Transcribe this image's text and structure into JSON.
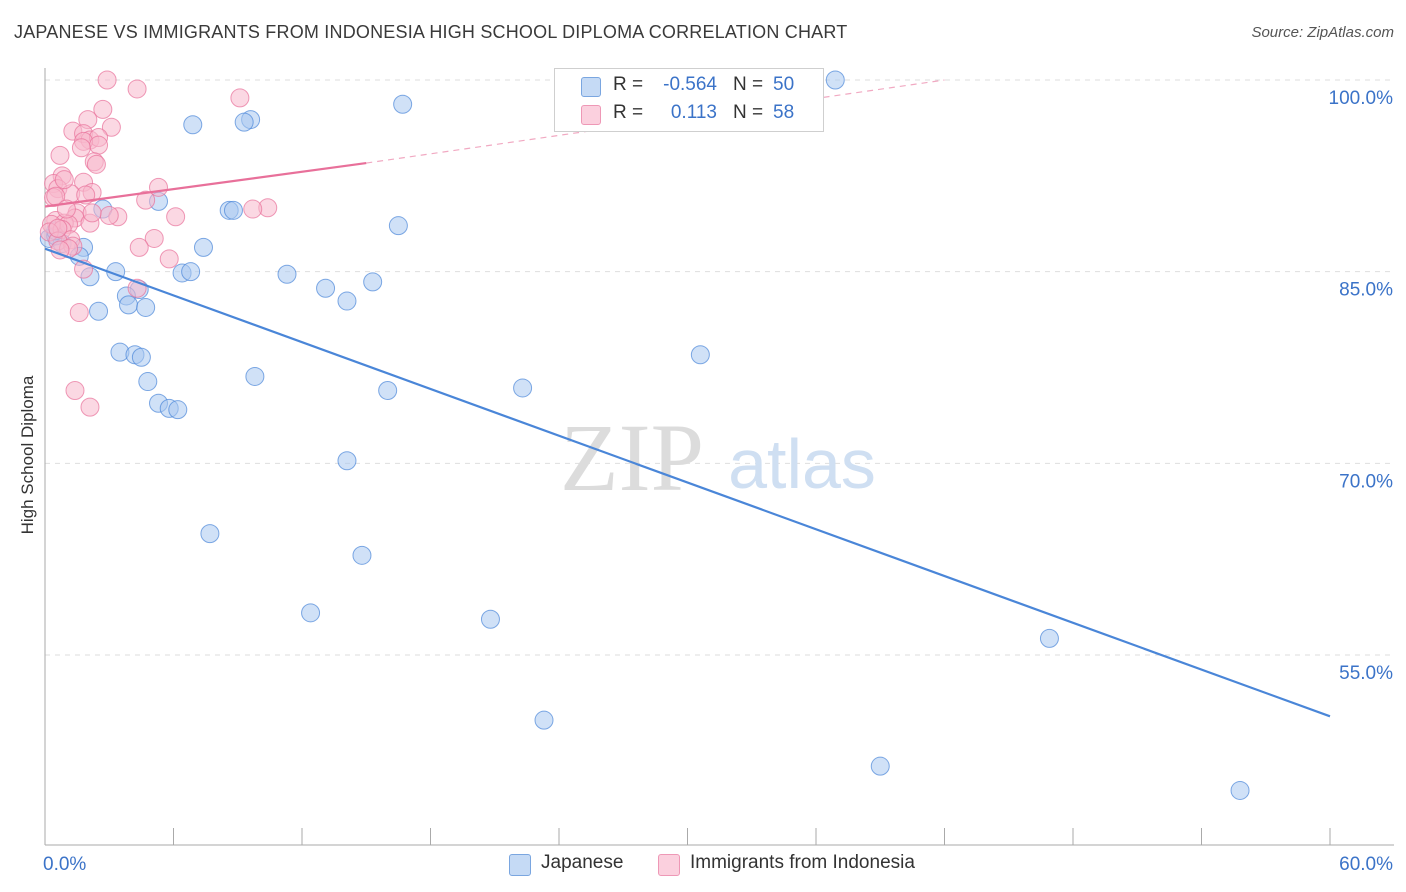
{
  "header": {
    "title": "JAPANESE VS IMMIGRANTS FROM INDONESIA HIGH SCHOOL DIPLOMA CORRELATION CHART",
    "source": "Source: ZipAtlas.com"
  },
  "watermark": {
    "zip": "ZIP",
    "atlas": "atlas"
  },
  "legend": {
    "rows": [
      {
        "r_label": "R =",
        "r_value": "-0.564",
        "n_label": "N =",
        "n_value": "50",
        "color": "#a9c8f0"
      },
      {
        "r_label": "R =",
        "r_value": "0.113",
        "n_label": "N =",
        "n_value": "58",
        "color": "#f7b8cc"
      }
    ]
  },
  "chart_data": {
    "type": "scatter",
    "title": "JAPANESE VS IMMIGRANTS FROM INDONESIA HIGH SCHOOL DIPLOMA CORRELATION CHART",
    "xlabel": "",
    "ylabel": "High School Diploma",
    "xlim": [
      0,
      60
    ],
    "ylim": [
      40,
      102
    ],
    "x_tick_labels": [
      "0.0%",
      "60.0%"
    ],
    "y_ticks": [
      55,
      70,
      85,
      100
    ],
    "y_tick_labels": [
      "55.0%",
      "70.0%",
      "85.0%",
      "100.0%"
    ],
    "grid": true,
    "legend_position": "bottom",
    "series": [
      {
        "name": "Japanese",
        "color": "#4a86d8",
        "fill": "#a9c8f0",
        "trend": {
          "x": [
            0,
            60
          ],
          "y": [
            86.8,
            50.2
          ]
        },
        "points": [
          [
            36.9,
            100
          ],
          [
            16.7,
            98.1
          ],
          [
            9.6,
            96.9
          ],
          [
            6.9,
            96.5
          ],
          [
            9.3,
            96.7
          ],
          [
            2.7,
            89.9
          ],
          [
            5.3,
            90.5
          ],
          [
            8.6,
            89.8
          ],
          [
            8.8,
            89.8
          ],
          [
            16.5,
            88.6
          ],
          [
            0.2,
            87.6
          ],
          [
            0.8,
            87.2
          ],
          [
            1.8,
            86.9
          ],
          [
            7.4,
            86.9
          ],
          [
            0.5,
            87.8
          ],
          [
            1.6,
            86.2
          ],
          [
            3.3,
            85.0
          ],
          [
            6.4,
            84.9
          ],
          [
            6.8,
            85.0
          ],
          [
            11.3,
            84.8
          ],
          [
            2.1,
            84.6
          ],
          [
            13.1,
            83.7
          ],
          [
            15.3,
            84.2
          ],
          [
            14.1,
            82.7
          ],
          [
            4.4,
            83.6
          ],
          [
            3.8,
            83.1
          ],
          [
            3.9,
            82.4
          ],
          [
            2.5,
            81.9
          ],
          [
            4.7,
            82.2
          ],
          [
            3.5,
            78.7
          ],
          [
            4.2,
            78.5
          ],
          [
            4.5,
            78.3
          ],
          [
            30.6,
            78.5
          ],
          [
            9.8,
            76.8
          ],
          [
            4.8,
            76.4
          ],
          [
            16.0,
            75.7
          ],
          [
            22.3,
            75.9
          ],
          [
            5.3,
            74.7
          ],
          [
            5.8,
            74.3
          ],
          [
            6.2,
            74.2
          ],
          [
            14.1,
            70.2
          ],
          [
            7.7,
            64.5
          ],
          [
            14.8,
            62.8
          ],
          [
            12.4,
            58.3
          ],
          [
            20.8,
            57.8
          ],
          [
            46.9,
            56.3
          ],
          [
            23.3,
            49.9
          ],
          [
            39.0,
            46.3
          ],
          [
            55.8,
            44.4
          ],
          [
            0.5,
            88.2
          ]
        ]
      },
      {
        "name": "Immigrants from Indonesia",
        "color": "#e8709a",
        "fill": "#f7b8cc",
        "trend": {
          "x": [
            0,
            15
          ],
          "y": [
            90.1,
            93.5
          ]
        },
        "trend_dashed": {
          "x": [
            15,
            42
          ],
          "y": [
            93.5,
            100
          ]
        },
        "points": [
          [
            2.9,
            100
          ],
          [
            4.3,
            99.3
          ],
          [
            9.1,
            98.6
          ],
          [
            2.7,
            97.7
          ],
          [
            2.0,
            96.9
          ],
          [
            3.1,
            96.3
          ],
          [
            1.3,
            96.0
          ],
          [
            1.8,
            95.8
          ],
          [
            2.1,
            95.3
          ],
          [
            2.5,
            95.5
          ],
          [
            1.8,
            95.2
          ],
          [
            2.5,
            94.9
          ],
          [
            1.7,
            94.7
          ],
          [
            0.7,
            94.1
          ],
          [
            2.3,
            93.6
          ],
          [
            2.4,
            93.4
          ],
          [
            0.8,
            92.5
          ],
          [
            1.8,
            92.0
          ],
          [
            0.4,
            91.9
          ],
          [
            0.6,
            91.5
          ],
          [
            5.3,
            91.6
          ],
          [
            2.2,
            91.2
          ],
          [
            1.2,
            91.1
          ],
          [
            1.9,
            91.0
          ],
          [
            0.4,
            90.8
          ],
          [
            4.7,
            90.6
          ],
          [
            10.4,
            90.0
          ],
          [
            9.7,
            89.9
          ],
          [
            1.5,
            89.6
          ],
          [
            6.1,
            89.3
          ],
          [
            3.4,
            89.3
          ],
          [
            1.4,
            89.2
          ],
          [
            0.5,
            89.0
          ],
          [
            0.9,
            88.8
          ],
          [
            2.1,
            88.8
          ],
          [
            1.1,
            88.7
          ],
          [
            0.3,
            88.7
          ],
          [
            0.8,
            88.3
          ],
          [
            0.2,
            88.1
          ],
          [
            5.1,
            87.6
          ],
          [
            1.2,
            87.5
          ],
          [
            0.6,
            87.4
          ],
          [
            1.3,
            87.0
          ],
          [
            1.1,
            86.8
          ],
          [
            0.7,
            86.7
          ],
          [
            4.4,
            86.9
          ],
          [
            5.8,
            86.0
          ],
          [
            1.8,
            85.2
          ],
          [
            4.3,
            83.7
          ],
          [
            1.6,
            81.8
          ],
          [
            1.4,
            75.7
          ],
          [
            2.1,
            74.4
          ],
          [
            0.5,
            90.9
          ],
          [
            1.0,
            89.9
          ],
          [
            3.0,
            89.4
          ],
          [
            0.9,
            92.2
          ],
          [
            2.2,
            89.6
          ],
          [
            0.6,
            88.4
          ]
        ]
      }
    ]
  }
}
